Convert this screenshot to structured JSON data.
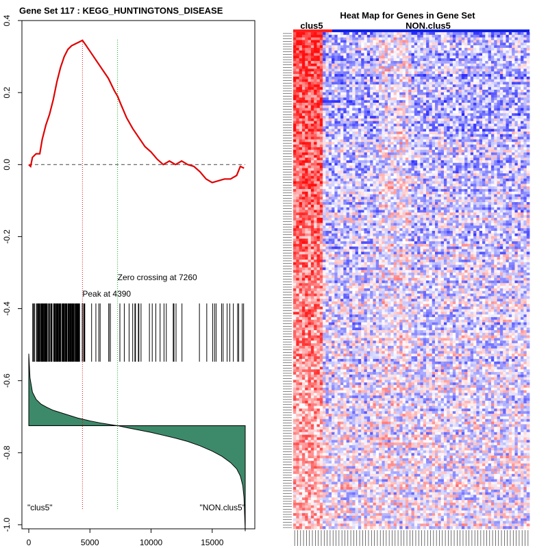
{
  "left_panel": {
    "title": "Gene Set  117 : KEGG_HUNTINGTONS_DISEASE",
    "peak_label": "Peak at 4390",
    "zero_label": "Zero crossing at 7260",
    "left_class": "\"clus5\"",
    "right_class": "\"NON.clus5\"",
    "colors": {
      "es_line": "#e00000",
      "peak_line": "#e00000",
      "zero_line": "#00aa00",
      "metric_fill": "#3d8a6a",
      "axis": "#000000"
    }
  },
  "right_panel": {
    "title": "Heat Map for Genes in Gene Set",
    "class_a_label": "clus5",
    "class_b_label": "NON.clus5",
    "colors": {
      "class_a_bar": "#ff2020",
      "class_b_bar": "#1020e0"
    }
  },
  "chart_data": [
    {
      "type": "line",
      "title": "Gene Set  117 : KEGG_HUNTINGTONS_DISEASE",
      "xlim": [
        0,
        17700
      ],
      "ylim": [
        -1.0,
        0.4
      ],
      "x_ticks": [
        0,
        5000,
        10000,
        15000
      ],
      "x_tick_labels": [
        "0",
        "5000",
        "10000",
        "15000"
      ],
      "y_ticks": [
        0.4,
        0.2,
        0.0,
        -0.2,
        -0.4,
        -0.6,
        -0.8,
        -1.0
      ],
      "y_tick_labels": [
        "0.4",
        "0.2",
        "0.0",
        "-0.2",
        "-0.4",
        "-0.6",
        "-0.8",
        "-1.0"
      ],
      "running_es": {
        "x": [
          0,
          150,
          300,
          600,
          900,
          1100,
          1400,
          1700,
          2000,
          2300,
          2600,
          2900,
          3200,
          3500,
          3800,
          4100,
          4390,
          4700,
          5000,
          5500,
          6000,
          6500,
          7000,
          7260,
          7500,
          8000,
          8500,
          9000,
          9500,
          10000,
          10500,
          11000,
          11500,
          12000,
          12500,
          13000,
          13500,
          14000,
          14500,
          15000,
          15500,
          16000,
          16500,
          17000,
          17300,
          17600
        ],
        "y": [
          0.0,
          -0.005,
          0.02,
          0.03,
          0.03,
          0.07,
          0.11,
          0.14,
          0.18,
          0.23,
          0.27,
          0.3,
          0.32,
          0.33,
          0.335,
          0.34,
          0.345,
          0.33,
          0.315,
          0.29,
          0.265,
          0.24,
          0.205,
          0.19,
          0.17,
          0.13,
          0.1,
          0.075,
          0.05,
          0.035,
          0.015,
          0.0,
          0.01,
          0.0,
          0.01,
          0.0,
          -0.005,
          -0.02,
          -0.04,
          -0.05,
          -0.045,
          -0.04,
          -0.04,
          -0.03,
          -0.005,
          -0.01
        ]
      },
      "baseline": 0.0,
      "peak_x": 4390,
      "zero_crossing_x": 7260,
      "ranked_metric": {
        "x": [
          0,
          100,
          300,
          600,
          1000,
          1500,
          2000,
          3000,
          4000,
          5000,
          6000,
          7000,
          7260,
          8000,
          9000,
          10000,
          11000,
          12000,
          13000,
          14000,
          15000,
          15800,
          16500,
          17000,
          17300,
          17500,
          17600,
          17700
        ],
        "y": [
          0.15,
          0.1,
          0.07,
          0.055,
          0.045,
          0.038,
          0.032,
          0.024,
          0.016,
          0.01,
          0.005,
          0.001,
          0.0,
          -0.004,
          -0.009,
          -0.014,
          -0.02,
          -0.026,
          -0.033,
          -0.042,
          -0.053,
          -0.064,
          -0.077,
          -0.09,
          -0.105,
          -0.125,
          -0.15,
          -0.22
        ]
      },
      "metric_zero_value": -0.725,
      "legend": "none"
    },
    {
      "type": "heatmap",
      "title": "Heat Map for Genes in Gene Set",
      "classes": [
        "clus5",
        "NON.clus5"
      ],
      "n_rows": 190,
      "n_cols_class_a": 10,
      "n_cols_class_b": 70,
      "value_range": [
        -1,
        1
      ],
      "color_scale": [
        "#1010ff",
        "#ffffff",
        "#ff1010"
      ]
    }
  ]
}
